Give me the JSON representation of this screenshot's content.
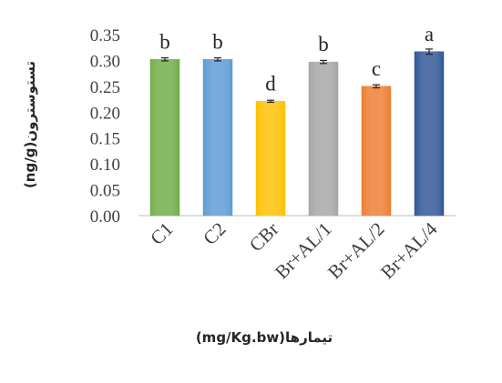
{
  "chart_data": {
    "type": "bar",
    "categories": [
      "C1",
      "C2",
      "CBr",
      "Br+AL/1",
      "Br+AL/2",
      "Br+AL/4"
    ],
    "values": [
      0.302,
      0.302,
      0.221,
      0.297,
      0.25,
      0.317
    ],
    "errors": [
      0.003,
      0.003,
      0.002,
      0.003,
      0.003,
      0.005
    ],
    "significance_letters": [
      "b",
      "b",
      "d",
      "b",
      "c",
      "a"
    ],
    "bar_colors": [
      "#70ad47",
      "#5b9bd5",
      "#ffc000",
      "#a5a5a5",
      "#ed7d31",
      "#2f5597"
    ],
    "xlabel": "(mg/Kg.bw)تیمارها",
    "ylabel": "(ng/g)تستوسترون",
    "ylim": [
      0,
      0.35
    ],
    "yticks": [
      "0.00",
      "0.05",
      "0.10",
      "0.15",
      "0.20",
      "0.25",
      "0.30",
      "0.35"
    ],
    "grid": false,
    "legend": "none"
  }
}
